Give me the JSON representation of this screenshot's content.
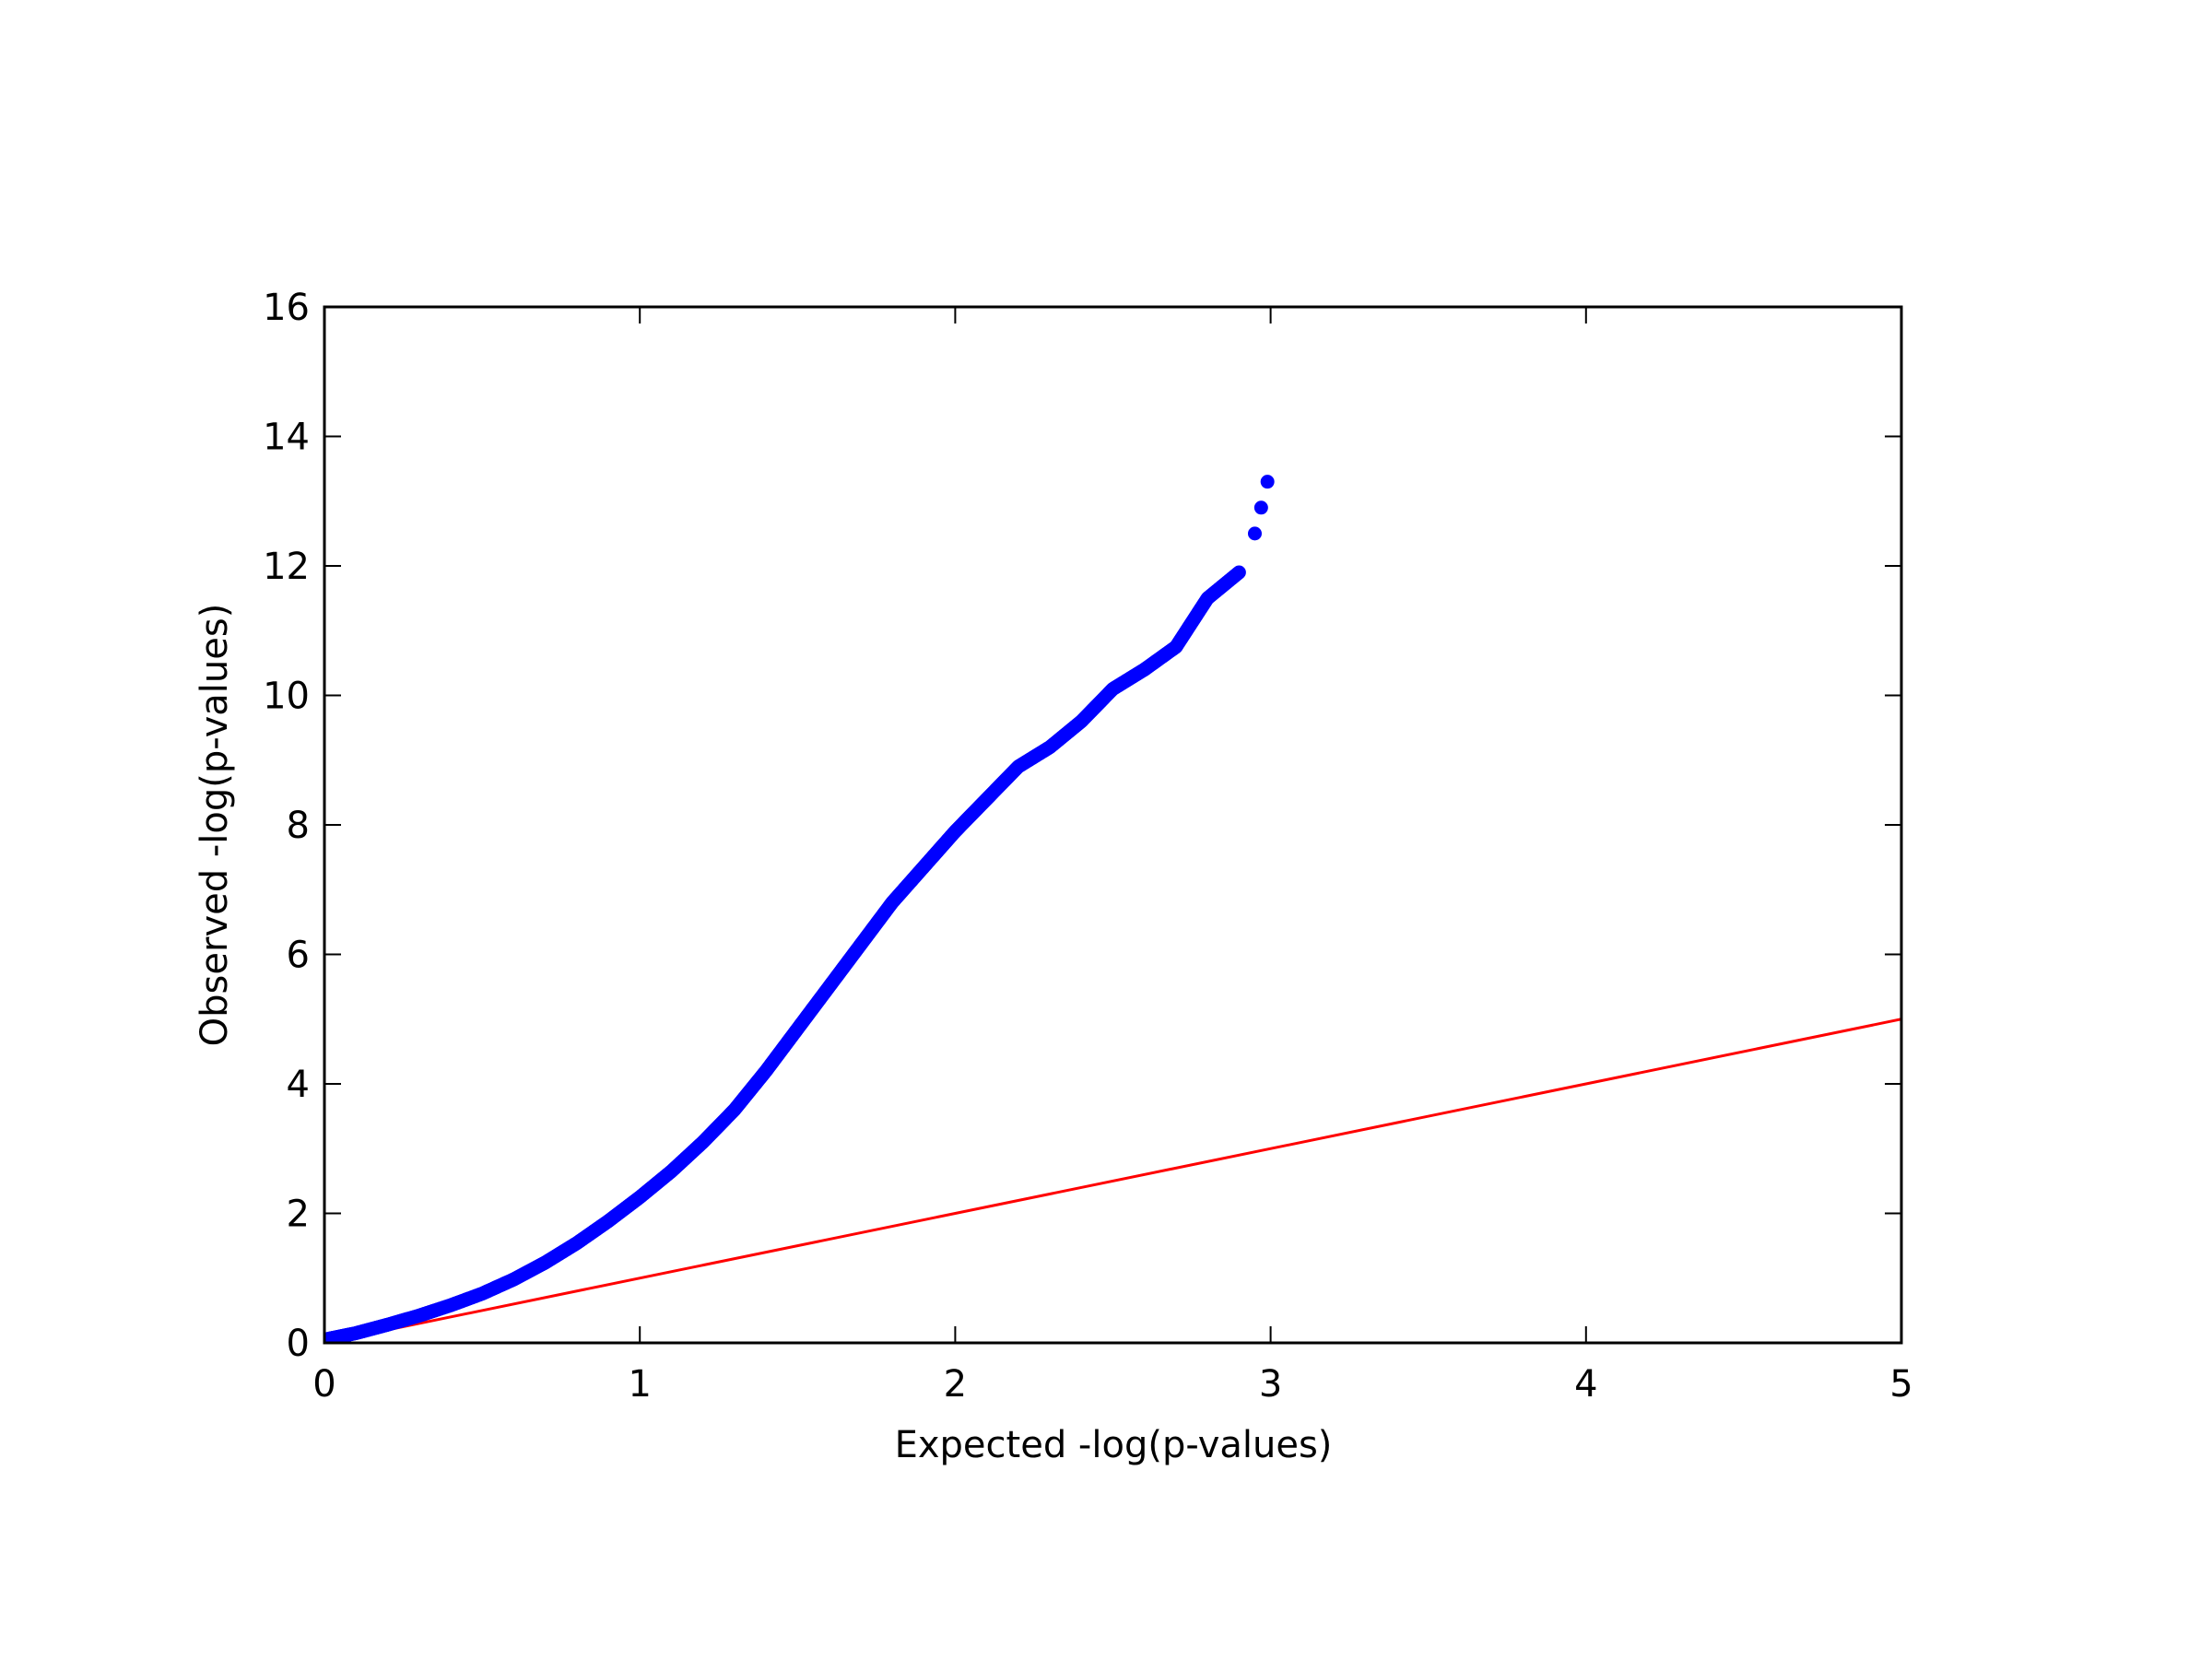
{
  "chart_data": {
    "type": "scatter",
    "title": "",
    "xlabel": "Expected -log(p-values)",
    "ylabel": "Observed -log(p-values)",
    "xlim": [
      0,
      5
    ],
    "ylim": [
      0,
      16
    ],
    "xticks": [
      "0",
      "1",
      "2",
      "3",
      "4",
      "5"
    ],
    "yticks": [
      "0",
      "2",
      "4",
      "6",
      "8",
      "10",
      "12",
      "14",
      "16"
    ],
    "grid": false,
    "legend": "none",
    "colors": {
      "points": "#0000ff",
      "reference_line": "#ff0000",
      "axes": "#000000"
    },
    "series": [
      {
        "kind": "points",
        "x": [
          0.0,
          0.1,
          0.2,
          0.3,
          0.4,
          0.5,
          0.6,
          0.7,
          0.8,
          0.9,
          1.0,
          1.1,
          1.2,
          1.3,
          1.4,
          1.5,
          1.6,
          1.7,
          1.8,
          1.9,
          2.0,
          2.1,
          2.2,
          2.3,
          2.4,
          2.5,
          2.6,
          2.7,
          2.8,
          2.9,
          2.95,
          2.97,
          2.99
        ],
        "y": [
          0.05,
          0.15,
          0.28,
          0.42,
          0.58,
          0.76,
          0.98,
          1.24,
          1.54,
          1.88,
          2.25,
          2.65,
          3.1,
          3.6,
          4.2,
          4.85,
          5.5,
          6.15,
          6.8,
          7.35,
          7.9,
          8.4,
          8.9,
          9.2,
          9.6,
          10.1,
          10.4,
          10.75,
          11.5,
          11.9,
          12.5,
          12.9,
          13.3
        ]
      },
      {
        "kind": "line",
        "x": [
          0,
          5
        ],
        "y": [
          0,
          5
        ]
      }
    ]
  }
}
